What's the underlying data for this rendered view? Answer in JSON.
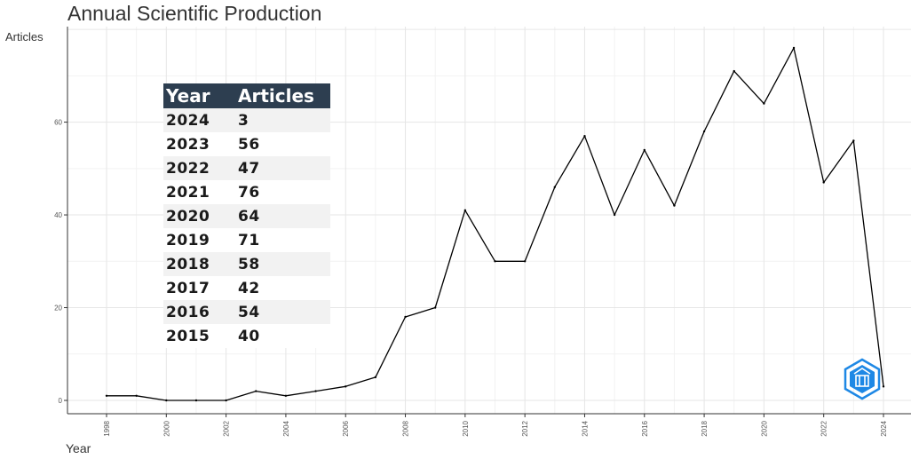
{
  "chart_data": {
    "type": "line",
    "title": "Annual Scientific Production",
    "xlabel": "Year",
    "ylabel": "Articles",
    "x": [
      1998,
      1999,
      2000,
      2001,
      2002,
      2003,
      2004,
      2005,
      2006,
      2007,
      2008,
      2009,
      2010,
      2011,
      2012,
      2013,
      2014,
      2015,
      2016,
      2017,
      2018,
      2019,
      2020,
      2021,
      2022,
      2023,
      2024
    ],
    "y": [
      1,
      1,
      0,
      0,
      0,
      2,
      1,
      2,
      3,
      5,
      18,
      20,
      41,
      30,
      30,
      46,
      57,
      40,
      54,
      42,
      58,
      71,
      64,
      76,
      47,
      56,
      3
    ],
    "xlim": [
      1998,
      2024
    ],
    "ylim": [
      0,
      76
    ],
    "x_ticks": [
      "1998",
      "2000",
      "2002",
      "2004",
      "2006",
      "2008",
      "2010",
      "2012",
      "2014",
      "2016",
      "2018",
      "2020",
      "2022",
      "2024"
    ],
    "y_ticks": [
      "0",
      "20",
      "40",
      "60"
    ],
    "grid": true,
    "line_color": "#000000"
  },
  "table": {
    "headers": [
      "Year",
      "Articles"
    ],
    "rows": [
      [
        "2024",
        "3"
      ],
      [
        "2023",
        "56"
      ],
      [
        "2022",
        "47"
      ],
      [
        "2021",
        "76"
      ],
      [
        "2020",
        "64"
      ],
      [
        "2019",
        "71"
      ],
      [
        "2018",
        "58"
      ],
      [
        "2017",
        "42"
      ],
      [
        "2016",
        "54"
      ],
      [
        "2015",
        "40"
      ]
    ],
    "header_color": "#2d3e50"
  },
  "logo": {
    "icon": "bibliometrix-logo-icon",
    "color": "#1e88e5"
  }
}
